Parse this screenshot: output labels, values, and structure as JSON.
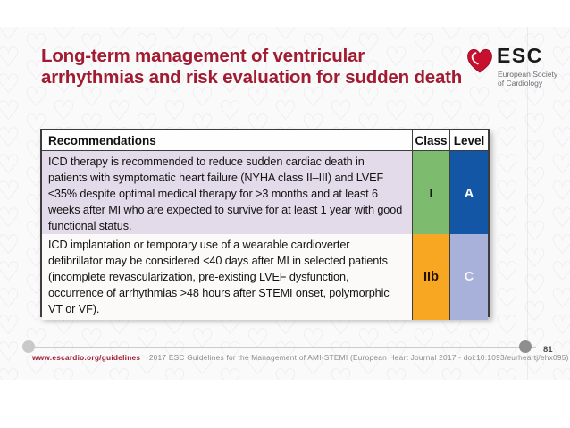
{
  "slide": {
    "title": "Long-term management of ventricular arrhythmias and risk evaluation for sudden death"
  },
  "logo": {
    "name": "ESC",
    "tagline_line1": "European Society",
    "tagline_line2": "of Cardiology",
    "heart_color": "#c8102e"
  },
  "table": {
    "headers": [
      "Recommendations",
      "Class",
      "Level"
    ],
    "rows": [
      {
        "recommendation": "ICD therapy is recommended to reduce sudden cardiac death in patients with symptomatic heart failure (NYHA class II–III) and LVEF ≤35% despite optimal medical therapy for >3 months and at least 6 weeks after MI who are expected to survive for at least 1 year with good functional status.",
        "class": "I",
        "level": "A",
        "row_bg": "#e4dbea",
        "class_bg": "#7dbc6f",
        "level_bg": "#1356a5"
      },
      {
        "recommendation": "ICD implantation or temporary use of a wearable cardioverter defibrillator may be considered <40 days after MI in selected patients (incomplete revascularization, pre-existing LVEF dysfunction, occurrence of arrhythmias >48 hours after STEMI onset, polymorphic VT or VF).",
        "class": "IIb",
        "level": "C",
        "row_bg": "#fbfaf9",
        "class_bg": "#f8a722",
        "level_bg": "#a8b1d9"
      }
    ]
  },
  "footer": {
    "link": "www.escardio.org/guidelines",
    "citation": "2017 ESC Guidelines for the Management of AMI-STEMI (European Heart Journal 2017 - doi:10.1093/eurheartj/ehx095)",
    "page_number": "81"
  },
  "colors": {
    "title_red": "#a21c31",
    "footer_link_red": "#9e1b32",
    "table_border": "#3d3d3d"
  }
}
